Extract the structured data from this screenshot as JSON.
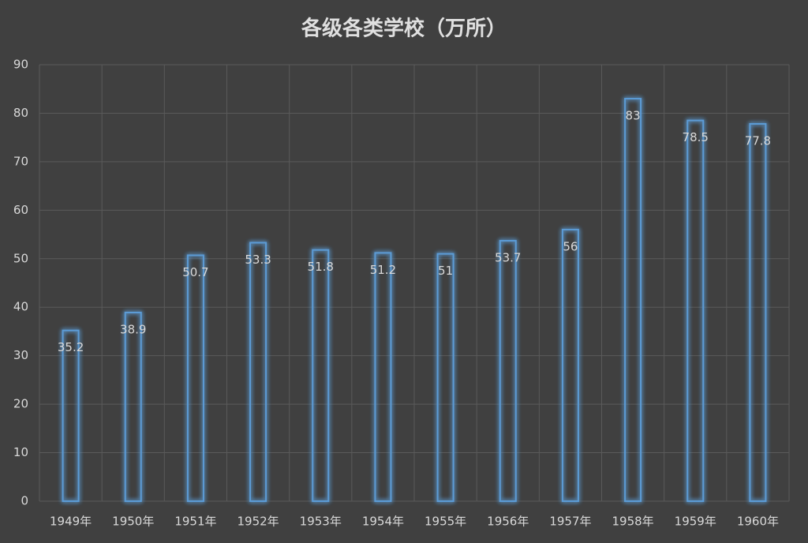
{
  "chart_data": {
    "type": "bar",
    "title": "各级各类学校（万所）",
    "categories": [
      "1949年",
      "1950年",
      "1951年",
      "1952年",
      "1953年",
      "1954年",
      "1955年",
      "1956年",
      "1957年",
      "1958年",
      "1959年",
      "1960年"
    ],
    "values": [
      35.2,
      38.9,
      50.7,
      53.3,
      51.8,
      51.2,
      51,
      53.7,
      56,
      83,
      78.5,
      77.8
    ],
    "color": "#5b9bd5",
    "ylim": [
      0,
      90
    ],
    "yticks": [
      0,
      10,
      20,
      30,
      40,
      50,
      60,
      70,
      80,
      90
    ],
    "grid": true
  }
}
